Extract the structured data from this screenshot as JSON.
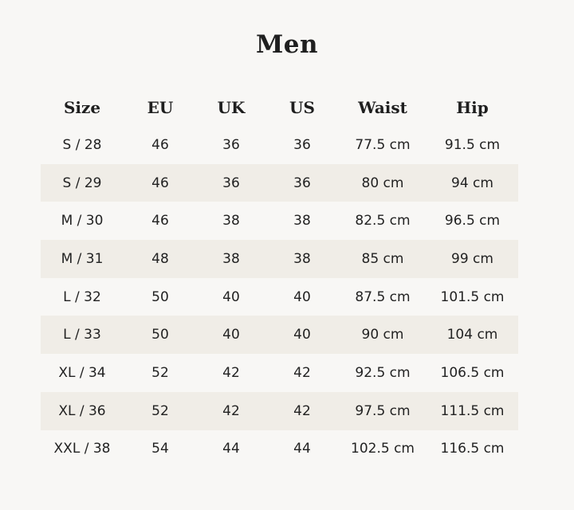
{
  "title": "Men",
  "columns": [
    "Size",
    "EU",
    "UK",
    "US",
    "Waist",
    "Hip"
  ],
  "rows": [
    [
      "S / 28",
      "46",
      "36",
      "36",
      "77.5 cm",
      "91.5 cm"
    ],
    [
      "S / 29",
      "46",
      "36",
      "36",
      "80 cm",
      "94 cm"
    ],
    [
      "M / 30",
      "46",
      "38",
      "38",
      "82.5 cm",
      "96.5 cm"
    ],
    [
      "M / 31",
      "48",
      "38",
      "38",
      "85 cm",
      "99 cm"
    ],
    [
      "L / 32",
      "50",
      "40",
      "40",
      "87.5 cm",
      "101.5 cm"
    ],
    [
      "L / 33",
      "50",
      "40",
      "40",
      "90 cm",
      "104 cm"
    ],
    [
      "XL / 34",
      "52",
      "42",
      "42",
      "92.5 cm",
      "106.5 cm"
    ],
    [
      "XL / 36",
      "52",
      "42",
      "42",
      "97.5 cm",
      "111.5 cm"
    ],
    [
      "XXL / 38",
      "54",
      "44",
      "44",
      "102.5 cm",
      "116.5 cm"
    ]
  ],
  "colors": {
    "background": "#f8f7f5",
    "stripe": "#f0ede7",
    "text": "#1f1f1f"
  }
}
